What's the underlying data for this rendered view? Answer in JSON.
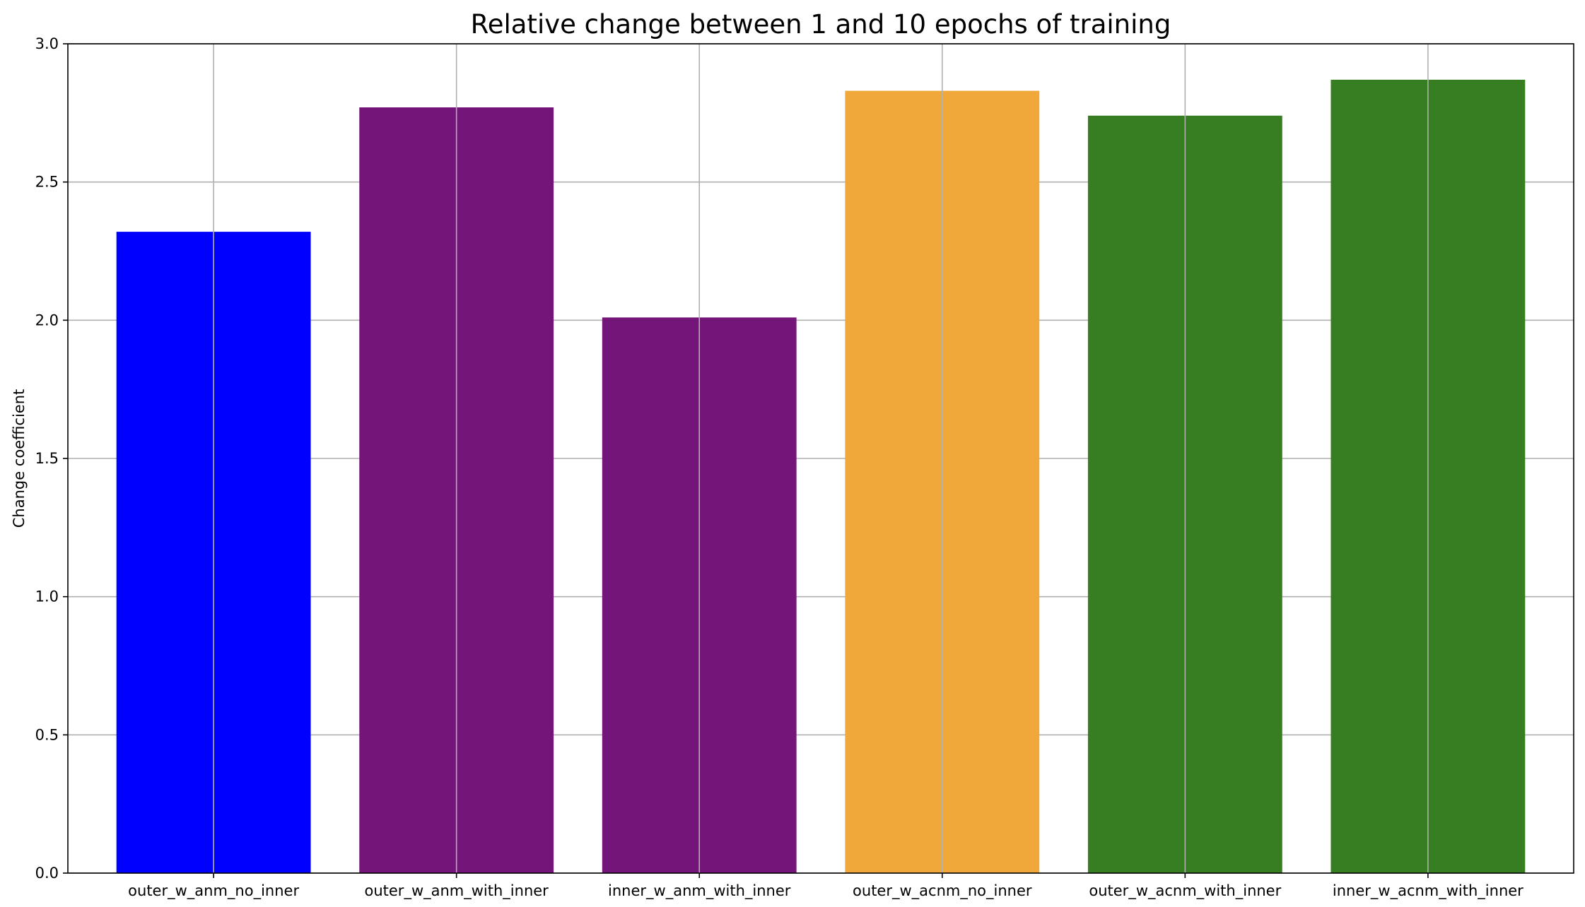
{
  "chart_data": {
    "type": "bar",
    "title": "Relative change between 1 and 10 epochs of training",
    "xlabel": "",
    "ylabel": "Change coefficient",
    "categories": [
      "outer_w_anm_no_inner",
      "outer_w_anm_with_inner",
      "inner_w_anm_with_inner",
      "outer_w_acnm_no_inner",
      "outer_w_acnm_with_inner",
      "inner_w_acnm_with_inner"
    ],
    "values": [
      2.32,
      2.77,
      2.01,
      2.83,
      2.74,
      2.87
    ],
    "colors": [
      "#0000ff",
      "#741579",
      "#741579",
      "#f0a83a",
      "#377e22",
      "#377e22"
    ],
    "ylim": [
      0,
      3.0
    ],
    "yticks": [
      0.0,
      0.5,
      1.0,
      1.5,
      2.0,
      2.5,
      3.0
    ],
    "ytick_labels": [
      "0.0",
      "0.5",
      "1.0",
      "1.5",
      "2.0",
      "2.5",
      "3.0"
    ],
    "grid": true,
    "grid_color": "#b0b0b0",
    "legend": "none"
  }
}
